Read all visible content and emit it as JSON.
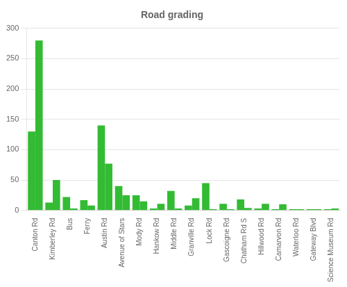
{
  "chart_data": {
    "type": "bar",
    "title": "Road grading",
    "categories": [
      "Canton Rd",
      "Kimberley Rd",
      "Bus",
      "Ferry",
      "Austin Rd",
      "Avenue of Stars",
      "Mody Rd",
      "Hankow Rd",
      "Middle Rd",
      "Granville Rd",
      "Lock Rd",
      "Gascoigne Rd",
      "Chatham Rd S",
      "Hillwood Rd",
      "Camarvon Rd",
      "Waterloo Rd",
      "Gateway Blvd",
      "Science Museum Rd"
    ],
    "series": [
      {
        "color": "#33bb33",
        "values": [
          130,
          13,
          22,
          17,
          140,
          40,
          25,
          3,
          32,
          8,
          45,
          11,
          18,
          3,
          2,
          2,
          2,
          2
        ]
      },
      {
        "color": "#33bb33",
        "values": [
          280,
          50,
          3,
          8,
          77,
          25,
          15,
          11,
          3,
          20,
          2,
          2,
          4,
          11,
          10,
          2,
          2,
          3
        ]
      }
    ],
    "ylim": [
      0,
      300
    ],
    "yticks": [
      0,
      50,
      100,
      150,
      200,
      250,
      300
    ],
    "grid": true
  }
}
